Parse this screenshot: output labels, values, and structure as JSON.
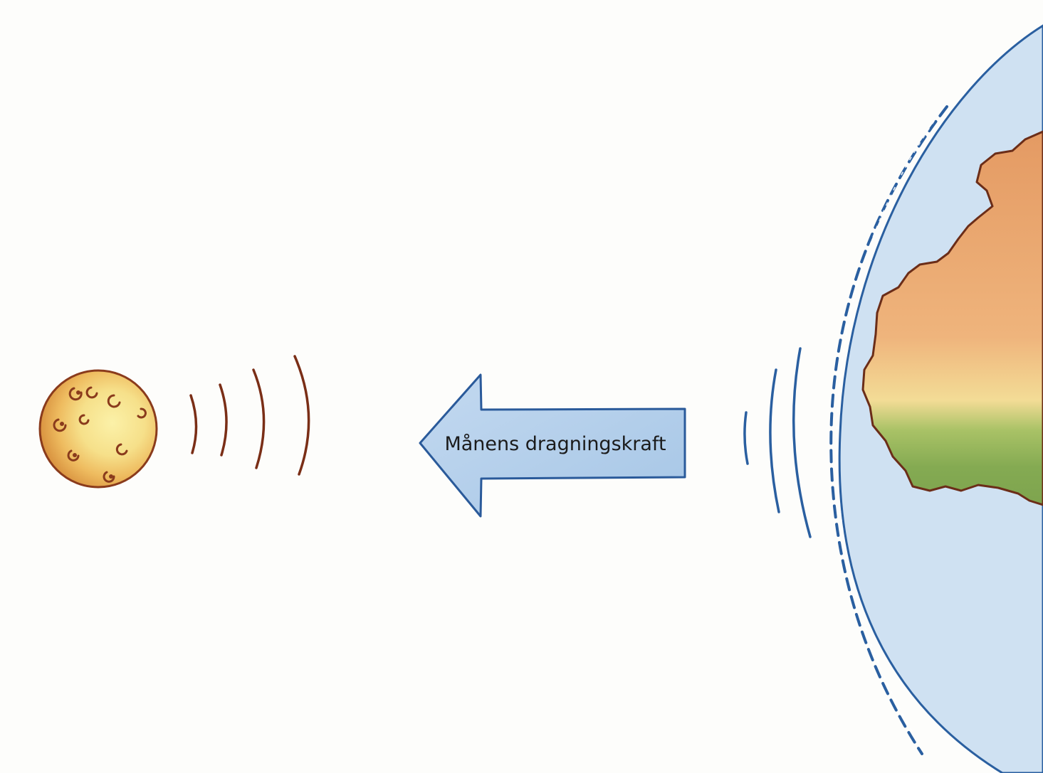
{
  "arrow": {
    "label": "Månens dragningskraft"
  },
  "colors": {
    "background": "#fdfdfb",
    "moon_fill": "#f0c46a",
    "moon_outline": "#8a3b1c",
    "moon_waves": "#7a2e16",
    "arrow_fill": "#b3d0ec",
    "arrow_outline": "#2a5a9a",
    "ocean": "#cfe1f2",
    "earth_outline": "#2a5fa0",
    "earth_waves": "#2a5fa0",
    "land_orange": "#e8a770",
    "land_yellow": "#f1dc92",
    "land_green": "#8fb35b",
    "land_outline": "#6b2d18"
  }
}
